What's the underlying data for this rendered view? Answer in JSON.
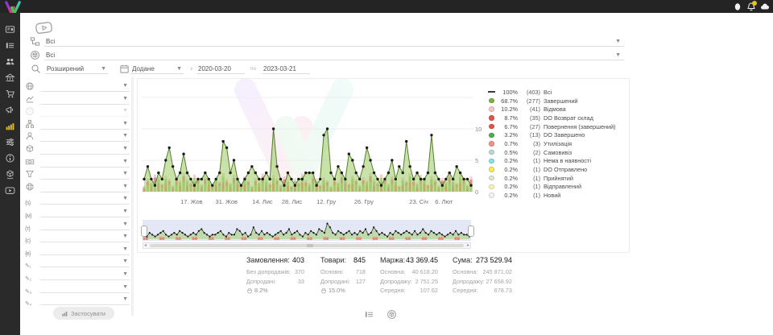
{
  "topbar": {
    "icons": [
      {
        "name": "user-icon"
      },
      {
        "name": "notifications-bell-icon",
        "badge": true,
        "badge_color": "#e7c21f"
      },
      {
        "name": "cloud-icon"
      }
    ],
    "logo_colors": {
      "left_stroke": [
        "#8a2ff7",
        "#f7424e"
      ],
      "right_stroke": [
        "#35d0c0",
        "#4fbf3a"
      ]
    }
  },
  "sidebar_rail": {
    "items": [
      {
        "name": "sidebar-item-dashboard",
        "icon": "dashboard",
        "active": false
      },
      {
        "name": "sidebar-item-orders",
        "icon": "list",
        "active": false
      },
      {
        "name": "sidebar-item-customers",
        "icon": "users",
        "active": false
      },
      {
        "name": "sidebar-item-warehouse",
        "icon": "bank",
        "active": false
      },
      {
        "name": "sidebar-item-purchases",
        "icon": "cart",
        "active": false
      },
      {
        "name": "sidebar-item-marketing",
        "icon": "megaphone",
        "active": false
      },
      {
        "name": "sidebar-item-analytics",
        "icon": "chart",
        "active": true
      },
      {
        "name": "sidebar-item-settings",
        "icon": "sliders",
        "active": false
      },
      {
        "name": "sidebar-item-info",
        "icon": "info",
        "active": false
      },
      {
        "name": "sidebar-item-shipping",
        "icon": "handbox",
        "active": false
      },
      {
        "name": "sidebar-item-tutorials",
        "icon": "video",
        "active": false
      }
    ],
    "active_color": "#e7c21f"
  },
  "filters_top": {
    "row1_value": "Всі",
    "row2_value": "Всі",
    "search_mode": "Розширений",
    "date_field": "Додане",
    "from_label": "з",
    "date_from": "2020-03-20",
    "to_label": "по",
    "date_to": "2023-03-21"
  },
  "filter_panel": {
    "items": [
      {
        "name": "country-filter",
        "icon": "globe"
      },
      {
        "name": "sales-dynamics-filter",
        "icon": "trend"
      },
      {
        "name": "help-filter",
        "icon": "help",
        "disabled": true
      },
      {
        "name": "structure-filter",
        "icon": "sitemap"
      },
      {
        "name": "manager-filter",
        "icon": "person"
      },
      {
        "name": "product-filter",
        "icon": "box"
      },
      {
        "name": "payment-filter",
        "icon": "banknote"
      },
      {
        "name": "funnel-filter",
        "icon": "funnel"
      },
      {
        "name": "website-filter",
        "icon": "globegrid"
      },
      {
        "name": "utm-source-filter",
        "icon": "token",
        "token": "{s}"
      },
      {
        "name": "utm-medium-filter",
        "icon": "token",
        "token": "{м}"
      },
      {
        "name": "utm-term-filter",
        "icon": "token",
        "token": "{т}"
      },
      {
        "name": "utm-content-filter",
        "icon": "token",
        "token": "{c}"
      },
      {
        "name": "utm-campaign-filter",
        "icon": "token",
        "token": "{в}"
      },
      {
        "name": "custom-field-1-filter",
        "icon": "token",
        "token": "✎₁"
      },
      {
        "name": "custom-field-2-filter",
        "icon": "token",
        "token": "✎₂"
      },
      {
        "name": "custom-field-3-filter",
        "icon": "token",
        "token": "✎₃"
      },
      {
        "name": "custom-field-4-filter",
        "icon": "token",
        "token": "✎₄"
      }
    ],
    "apply_label": "Застосувати"
  },
  "chart_data": {
    "type": "line",
    "title": "",
    "xlabel": "",
    "ylabel": "",
    "y_ticks": [
      0,
      5,
      10
    ],
    "ylim": [
      0,
      15
    ],
    "grid": true,
    "legend_position": "right",
    "x_axis_labels": [
      {
        "label": "17. Жов",
        "pos": 0.145
      },
      {
        "label": "31. Жов",
        "pos": 0.252
      },
      {
        "label": "14. Лис",
        "pos": 0.362
      },
      {
        "label": "28. Лис",
        "pos": 0.452
      },
      {
        "label": "12. Гру",
        "pos": 0.557
      },
      {
        "label": "26. Гру",
        "pos": 0.672
      },
      {
        "label": "23. Січ",
        "pos": 0.84
      },
      {
        "label": "6. Лют",
        "pos": 0.917
      }
    ],
    "series": [
      {
        "name": "Всі",
        "color": "#557d2d",
        "fill": "#9ccb63",
        "values": [
          2,
          4,
          2,
          1,
          3,
          2,
          5,
          7,
          4,
          2,
          3,
          6,
          3,
          2,
          1,
          2,
          2,
          3,
          2,
          1,
          2,
          3,
          8,
          7,
          3,
          5,
          2,
          1,
          2,
          3,
          4,
          3,
          2,
          2,
          3,
          2,
          10,
          4,
          2,
          1,
          3,
          2,
          1,
          2,
          2,
          3,
          3,
          3,
          1,
          2,
          9,
          10,
          3,
          2,
          4,
          3,
          2,
          6,
          5,
          3,
          2,
          4,
          7,
          5,
          3,
          2,
          1,
          2,
          3,
          5,
          2,
          4,
          3,
          8,
          4,
          2,
          3,
          2,
          2,
          3,
          9,
          3,
          2,
          1,
          2,
          3,
          2,
          4,
          3,
          2,
          2,
          1
        ]
      }
    ],
    "brush_values": [
      2,
      1,
      3,
      2,
      1,
      2,
      3,
      4,
      2,
      1,
      2,
      3,
      2,
      4,
      3,
      2,
      1,
      2,
      3,
      2,
      4,
      5,
      3,
      2,
      1,
      2,
      2,
      3,
      4,
      2,
      1,
      3,
      2,
      2,
      5,
      4,
      2,
      3,
      1,
      2,
      6,
      3,
      2,
      4,
      2,
      3,
      2,
      1,
      2,
      3,
      4,
      2,
      3,
      5,
      2,
      3,
      4,
      2,
      1,
      3,
      2,
      4,
      3,
      2,
      5,
      4,
      3,
      8,
      6,
      3,
      2,
      4,
      3,
      2,
      3,
      4,
      2,
      3,
      2,
      4,
      3,
      5,
      2,
      3,
      6,
      4,
      2,
      3,
      2,
      1,
      3,
      2,
      4,
      3,
      2,
      3,
      4,
      3,
      2,
      4,
      2,
      3,
      5,
      3,
      2,
      4,
      3,
      2,
      3,
      2,
      1,
      2,
      3,
      2,
      4,
      2,
      3,
      2,
      2,
      1
    ],
    "bar_colors": [
      "#94c760",
      "#e2766c",
      "#f3c6cf"
    ]
  },
  "legend": {
    "items": [
      {
        "pct": "100%",
        "count": "(403)",
        "label": "Всі",
        "color": "#3c3c3c",
        "swatch": "line"
      },
      {
        "pct": "68.7%",
        "count": "(277)",
        "label": "Завершений",
        "color": "#7cb342",
        "swatch": "dot"
      },
      {
        "pct": "10.2%",
        "count": "(41)",
        "label": "Відмова",
        "color": "#f4c9c5",
        "swatch": "dot"
      },
      {
        "pct": "8.7%",
        "count": "(35)",
        "label": "DO Возврат склад",
        "color": "#e0544a",
        "swatch": "dot"
      },
      {
        "pct": "6.7%",
        "count": "(27)",
        "label": "Повернення (завершений)",
        "color": "#e0544a",
        "swatch": "dot"
      },
      {
        "pct": "3.2%",
        "count": "(13)",
        "label": "DO Завершено",
        "color": "#4caf50",
        "swatch": "dot"
      },
      {
        "pct": "0.7%",
        "count": "(3)",
        "label": "Утилізація",
        "color": "#ed948b",
        "swatch": "dot"
      },
      {
        "pct": "0.5%",
        "count": "(2)",
        "label": "Самовивіз",
        "color": "#b9d8d6",
        "swatch": "dot"
      },
      {
        "pct": "0.2%",
        "count": "(1)",
        "label": "Нема в наявності",
        "color": "#83e2ee",
        "swatch": "dot"
      },
      {
        "pct": "0.2%",
        "count": "(1)",
        "label": "DO Отправлено",
        "color": "#f2ec55",
        "swatch": "dot"
      },
      {
        "pct": "0.2%",
        "count": "(1)",
        "label": "Прийнятий",
        "color": "#e0e8d2",
        "swatch": "dot"
      },
      {
        "pct": "0.2%",
        "count": "(1)",
        "label": "Відправлений",
        "color": "#f7f2b2",
        "swatch": "dot"
      },
      {
        "pct": "0.2%",
        "count": "(1)",
        "label": "Новий",
        "color": "#f4f4f4",
        "swatch": "dot"
      }
    ]
  },
  "stats": {
    "columns": [
      {
        "title": "Замовлення:",
        "value": "403",
        "rows": [
          {
            "label": "Без допродажів:",
            "value": "370"
          },
          {
            "label": "Допродані:",
            "value": "33"
          }
        ],
        "upsell_pct": "8.2%"
      },
      {
        "title": "Товари:",
        "value": "845",
        "rows": [
          {
            "label": "Основні:",
            "value": "718"
          },
          {
            "label": "Допродані:",
            "value": "127"
          }
        ],
        "upsell_pct": "15.0%"
      },
      {
        "title": "Маржа:",
        "value": "43 369.45",
        "rows": [
          {
            "label": "Основна:",
            "value": "40 618.20"
          },
          {
            "label": "Допродажу:",
            "value": "2 751.25"
          },
          {
            "label": "Середня:",
            "value": "107.62"
          }
        ]
      },
      {
        "title": "Сума:",
        "value": "273 529.94",
        "rows": [
          {
            "label": "Основна:",
            "value": "245 871.02"
          },
          {
            "label": "Допродажу:",
            "value": "27 658.92"
          },
          {
            "label": "Середня:",
            "value": "678.73"
          }
        ]
      }
    ]
  },
  "footer": {
    "icons": [
      {
        "name": "table-view-icon"
      },
      {
        "name": "package-view-icon"
      }
    ]
  }
}
